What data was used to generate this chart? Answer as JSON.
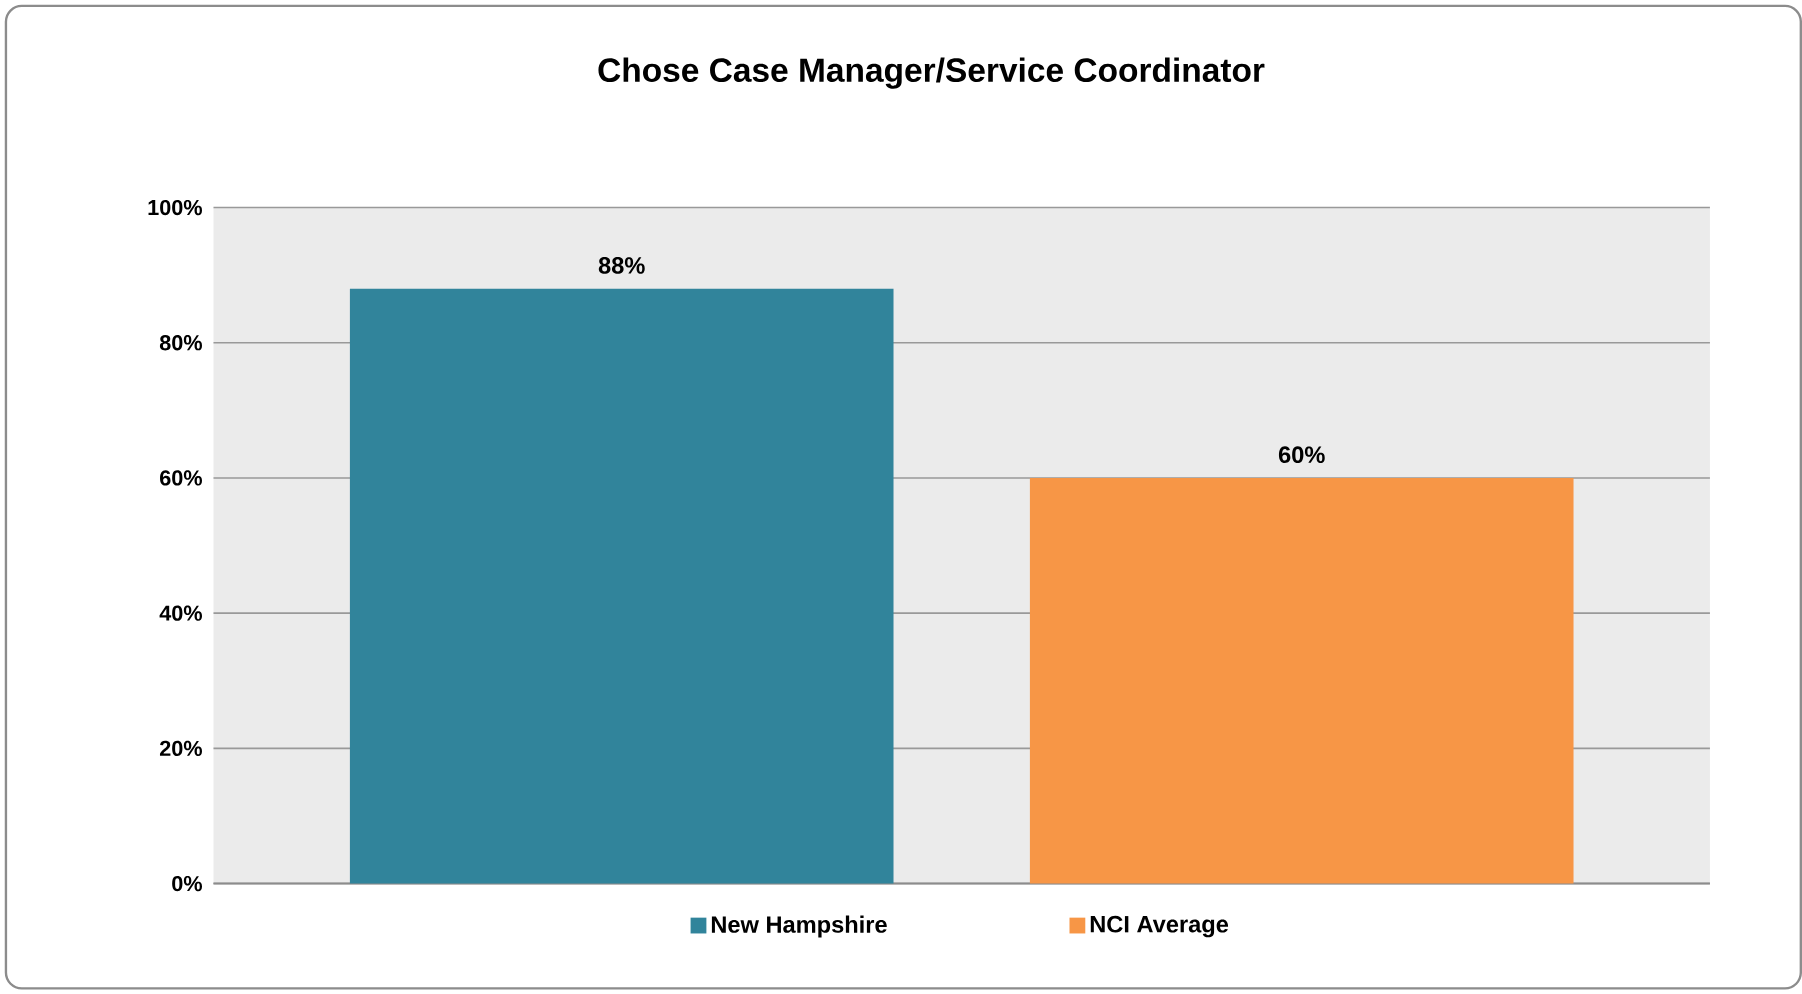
{
  "chart_data": {
    "type": "bar",
    "title": "Chose Case Manager/Service Coordinator",
    "categories": [
      null
    ],
    "series": [
      {
        "name": "New Hampshire",
        "color": "#31849b",
        "values": [
          88
        ],
        "value_labels": [
          "88%"
        ]
      },
      {
        "name": "NCI Average",
        "color": "#f79646",
        "values": [
          60
        ],
        "value_labels": [
          "60%"
        ]
      }
    ],
    "ylim": [
      0,
      100
    ],
    "yticks": [
      {
        "value": 0,
        "label": "0%"
      },
      {
        "value": 20,
        "label": "20%"
      },
      {
        "value": 40,
        "label": "40%"
      },
      {
        "value": 60,
        "label": "60%"
      },
      {
        "value": 80,
        "label": "80%"
      },
      {
        "value": 100,
        "label": "100%"
      }
    ],
    "grid": "y",
    "legend": "bottom"
  }
}
